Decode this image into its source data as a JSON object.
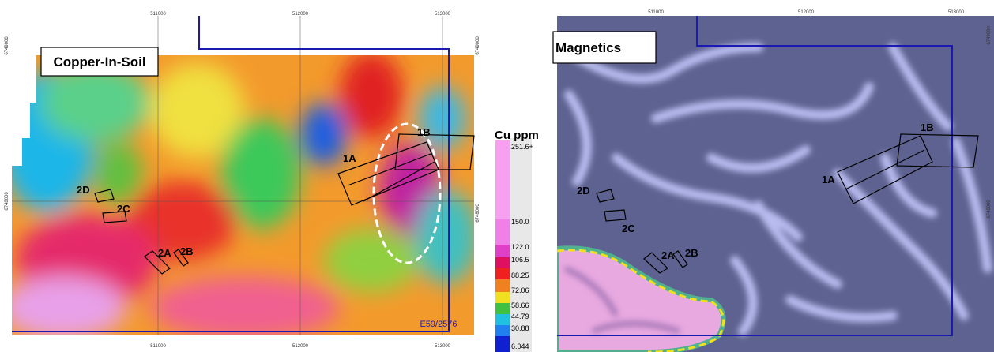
{
  "left_map": {
    "title": "Copper-In-Soil",
    "easting_labels_top": [
      "511000",
      "512000",
      "513000"
    ],
    "easting_labels_bottom": [
      "511000",
      "512000",
      "513000"
    ],
    "northing_labels": [
      "6749000",
      "6748000"
    ],
    "target_labels": [
      "1A",
      "1B",
      "2A",
      "2B",
      "2C",
      "2D"
    ],
    "tenement": "E59/2576"
  },
  "legend": {
    "title": "Cu ppm",
    "labels": [
      "251.6+",
      "150.0",
      "122.0",
      "106.5",
      "88.25",
      "72.06",
      "58.66",
      "44.79",
      "30.88",
      "6.044"
    ]
  },
  "right_map": {
    "title": "Magnetics",
    "easting_labels_top": [
      "511000",
      "512000",
      "513000"
    ],
    "northing_labels": [
      "6749000",
      "6748000"
    ],
    "target_labels": [
      "1A",
      "1B",
      "2A",
      "2B",
      "2C",
      "2D"
    ]
  }
}
